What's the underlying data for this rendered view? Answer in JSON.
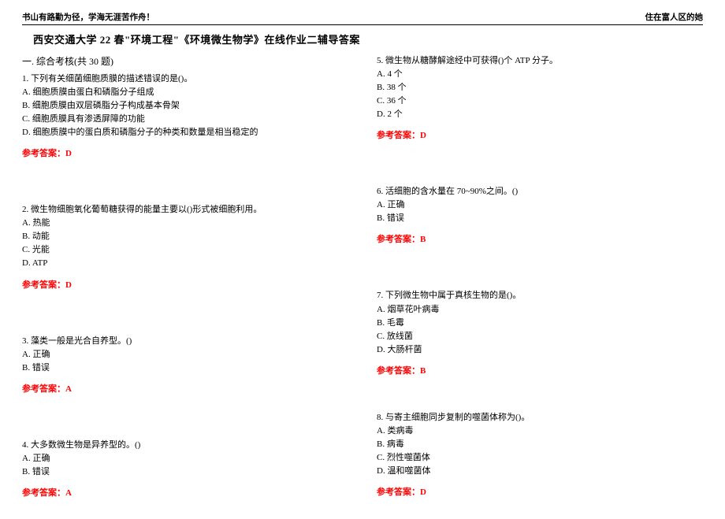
{
  "header": {
    "left": "书山有路勤为径，学海无涯苦作舟！",
    "right": "住在富人区的她"
  },
  "title": "西安交通大学 22 春\"环境工程\"《环境微生物学》在线作业二辅导答案",
  "section": "一. 综合考核(共 30 题)",
  "answer_label_prefix": "参考答案：",
  "questions": {
    "q1": {
      "stem": "1. 下列有关细菌细胞质膜的描述错误的是()。",
      "opts": [
        "A. 细胞质膜由蛋白和磷脂分子组成",
        "B. 细胞质膜由双层磷脂分子构成基本骨架",
        "C. 细胞质膜具有渗透屏障的功能",
        "D. 细胞质膜中的蛋白质和磷脂分子的种类和数量是相当稳定的"
      ],
      "ans": "D"
    },
    "q2": {
      "stem": "2. 微生物细胞氧化葡萄糖获得的能量主要以()形式被细胞利用。",
      "opts": [
        "A. 热能",
        "B. 动能",
        "C. 光能",
        "D. ATP"
      ],
      "ans": "D"
    },
    "q3": {
      "stem": "3. 藻类一般是光合自养型。()",
      "opts": [
        "A. 正确",
        "B. 错误"
      ],
      "ans": "A"
    },
    "q4": {
      "stem": "4. 大多数微生物是异养型的。()",
      "opts": [
        "A. 正确",
        "B. 错误"
      ],
      "ans": "A"
    },
    "q5": {
      "stem": "5. 微生物从糖酵解途经中可获得()个 ATP 分子。",
      "opts": [
        "A. 4 个",
        "B. 38 个",
        "C. 36 个",
        "D. 2 个"
      ],
      "ans": "D"
    },
    "q6": {
      "stem": "6. 活细胞的含水量在 70~90%之间。()",
      "opts": [
        "A. 正确",
        "B. 错误"
      ],
      "ans": "B"
    },
    "q7": {
      "stem": "7. 下列微生物中属于真核生物的是()。",
      "opts": [
        "A. 烟草花叶病毒",
        "B. 毛霉",
        "C. 放线菌",
        "D. 大肠杆菌"
      ],
      "ans": "B"
    },
    "q8": {
      "stem": "8. 与寄主细胞同步复制的噬菌体称为()。",
      "opts": [
        "A. 类病毒",
        "B. 病毒",
        "C. 烈性噬菌体",
        "D. 温和噬菌体"
      ],
      "ans": "D"
    }
  }
}
